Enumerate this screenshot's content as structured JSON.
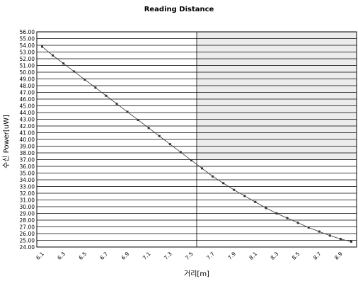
{
  "chart_data": {
    "type": "line",
    "title": "Reading Distance",
    "xlabel": "거리[m]",
    "ylabel": "수신 Power[uW]",
    "ylim": [
      24,
      56
    ],
    "yticks": [
      "24.00",
      "25.00",
      "26.00",
      "27.00",
      "28.00",
      "29.00",
      "30.00",
      "31.00",
      "32.00",
      "33.00",
      "34.00",
      "35.00",
      "36.00",
      "37.00",
      "38.00",
      "39.00",
      "40.00",
      "41.00",
      "42.00",
      "43.00",
      "44.00",
      "45.00",
      "46.00",
      "47.00",
      "48.00",
      "49.00",
      "50.00",
      "51.00",
      "52.00",
      "53.00",
      "54.00",
      "55.00",
      "56.00"
    ],
    "xticks": [
      "6.1",
      "6.3",
      "6.5",
      "6.7",
      "6.9",
      "7.1",
      "7.3",
      "7.5",
      "7.7",
      "7.9",
      "8.1",
      "8.3",
      "8.5",
      "8.7",
      "8.9"
    ],
    "grid": true,
    "series": [
      {
        "x": [
          6.1,
          6.2,
          6.3,
          6.4,
          6.5,
          6.6,
          6.7,
          6.8,
          6.9,
          7.0,
          7.1,
          7.2,
          7.3,
          7.4,
          7.5,
          7.6,
          7.7,
          7.8,
          7.9,
          8.0,
          8.1,
          8.2,
          8.3,
          8.4,
          8.5,
          8.6,
          8.7,
          8.8,
          8.9,
          9.0
        ],
        "values": [
          53.8,
          52.5,
          51.3,
          50.1,
          48.9,
          47.7,
          46.5,
          45.3,
          44.1,
          42.9,
          41.7,
          40.5,
          39.3,
          38.1,
          36.9,
          35.7,
          34.5,
          33.5,
          32.5,
          31.6,
          30.7,
          29.8,
          29.0,
          28.3,
          27.6,
          26.9,
          26.3,
          25.7,
          25.2,
          24.8
        ],
        "color": "#333333"
      }
    ]
  }
}
